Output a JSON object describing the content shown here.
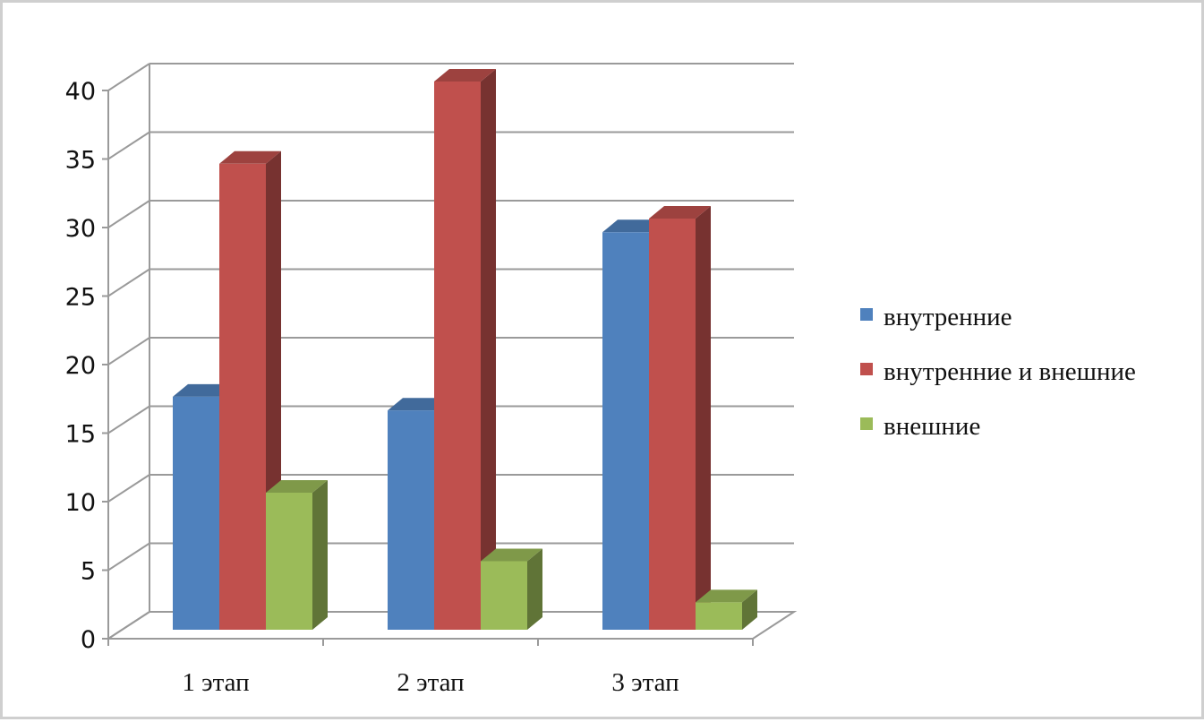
{
  "chart_data": {
    "type": "bar",
    "style": "3d-clustered-column",
    "title": "",
    "xlabel": "",
    "ylabel": "",
    "categories": [
      "1 этап",
      "2 этап",
      "3 этап"
    ],
    "series": [
      {
        "name": "внутренние",
        "values": [
          17,
          16,
          29
        ],
        "color": "#4f81bd"
      },
      {
        "name": "внутренние и внешние",
        "values": [
          34,
          40,
          30
        ],
        "color": "#c0504d"
      },
      {
        "name": "внешние",
        "values": [
          10,
          5,
          2
        ],
        "color": "#9bbb59"
      }
    ],
    "ylim": [
      0,
      40
    ],
    "yticks": [
      "0",
      "5",
      "10",
      "15",
      "20",
      "25",
      "30",
      "35",
      "40"
    ],
    "grid": true,
    "legend_position": "right"
  }
}
